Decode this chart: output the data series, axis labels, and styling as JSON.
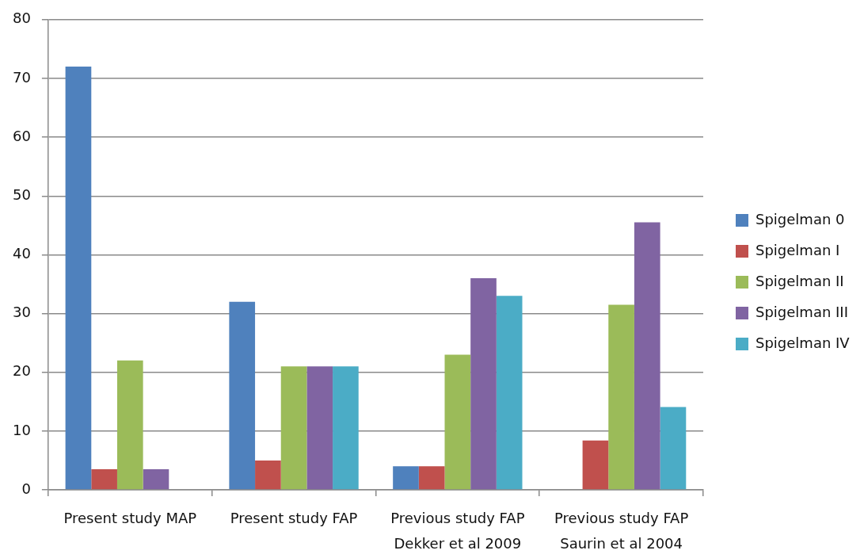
{
  "chart_data": {
    "type": "bar",
    "categories": [
      "Present study MAP",
      "Present study FAP",
      "Previous study FAP\nDekker et al 2009",
      "Previous study FAP\nSaurin et al 2004"
    ],
    "series": [
      {
        "name": "Spigelman 0",
        "color": "#4f81bd",
        "values": [
          72,
          32,
          4,
          0
        ]
      },
      {
        "name": "Spigelman I",
        "color": "#c0504d",
        "values": [
          3.5,
          5,
          4,
          8.4
        ]
      },
      {
        "name": "Spigelman II",
        "color": "#9bbb59",
        "values": [
          22,
          21,
          23,
          31.5
        ]
      },
      {
        "name": "Spigelman III",
        "color": "#8064a2",
        "values": [
          3.5,
          21,
          36,
          45.5
        ]
      },
      {
        "name": "Spigelman IV",
        "color": "#4bacc6",
        "values": [
          0,
          21,
          33,
          14.1
        ]
      }
    ],
    "ylim": [
      0,
      80
    ],
    "yticks": [
      0,
      10,
      20,
      30,
      40,
      50,
      60,
      70,
      80
    ],
    "grid": "y",
    "legend": "right"
  }
}
